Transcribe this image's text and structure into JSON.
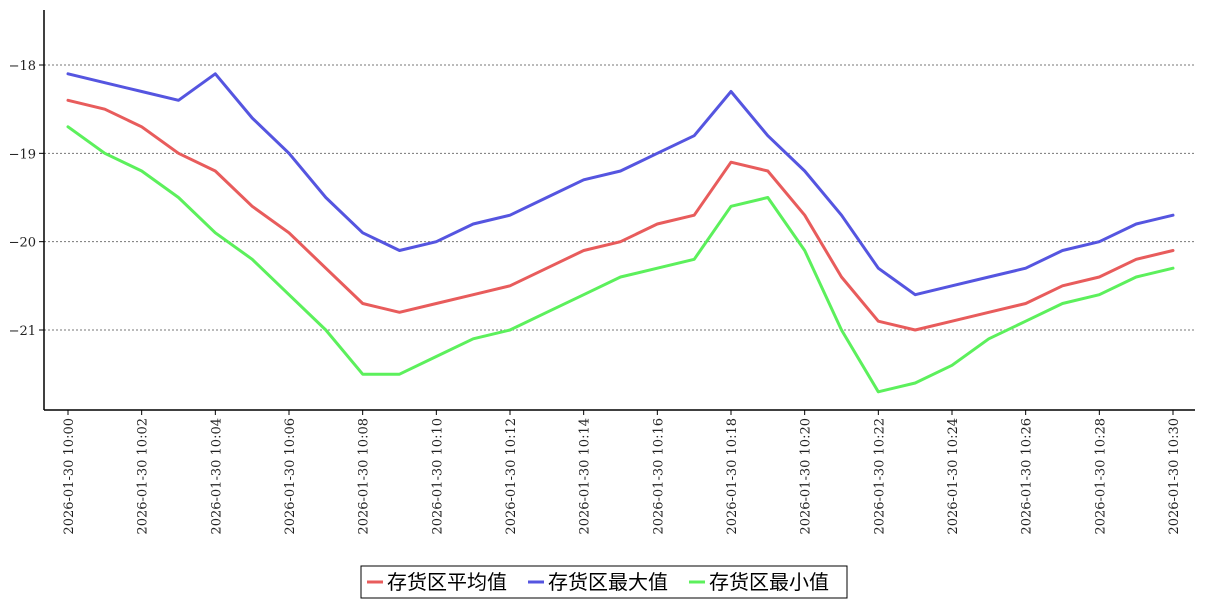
{
  "chart_data": {
    "type": "line",
    "x": [
      "2026-01-30 10:00",
      "2026-01-30 10:01",
      "2026-01-30 10:02",
      "2026-01-30 10:03",
      "2026-01-30 10:04",
      "2026-01-30 10:05",
      "2026-01-30 10:06",
      "2026-01-30 10:07",
      "2026-01-30 10:08",
      "2026-01-30 10:09",
      "2026-01-30 10:10",
      "2026-01-30 10:11",
      "2026-01-30 10:12",
      "2026-01-30 10:13",
      "2026-01-30 10:14",
      "2026-01-30 10:15",
      "2026-01-30 10:16",
      "2026-01-30 10:17",
      "2026-01-30 10:18",
      "2026-01-30 10:19",
      "2026-01-30 10:20",
      "2026-01-30 10:21",
      "2026-01-30 10:22",
      "2026-01-30 10:23",
      "2026-01-30 10:24",
      "2026-01-30 10:25",
      "2026-01-30 10:26",
      "2026-01-30 10:27",
      "2026-01-30 10:28",
      "2026-01-30 10:29",
      "2026-01-30 10:30"
    ],
    "x_tick_labels": [
      "2026-01-30 10:00",
      "2026-01-30 10:02",
      "2026-01-30 10:04",
      "2026-01-30 10:06",
      "2026-01-30 10:08",
      "2026-01-30 10:10",
      "2026-01-30 10:12",
      "2026-01-30 10:14",
      "2026-01-30 10:16",
      "2026-01-30 10:18",
      "2026-01-30 10:20",
      "2026-01-30 10:22",
      "2026-01-30 10:24",
      "2026-01-30 10:26",
      "2026-01-30 10:28",
      "2026-01-30 10:30"
    ],
    "y_ticks": [
      -18,
      -19,
      -20,
      -21
    ],
    "y_tick_labels": [
      "−18",
      "−19",
      "−20",
      "−21"
    ],
    "ylim": [
      -21.93,
      -17.4
    ],
    "grid": "horizontal dotted",
    "legend_position": "bottom-center",
    "title": "",
    "xlabel": "",
    "ylabel": "",
    "series": [
      {
        "name": "存货区平均值",
        "color": "#e85c5c",
        "values": [
          -18.4,
          -18.5,
          -18.7,
          -19.0,
          -19.2,
          -19.6,
          -19.9,
          -20.3,
          -20.7,
          -20.8,
          -20.7,
          -20.6,
          -20.5,
          -20.3,
          -20.1,
          -20.0,
          -19.8,
          -19.7,
          -19.1,
          -19.2,
          -19.7,
          -20.4,
          -20.9,
          -21.0,
          -20.9,
          -20.8,
          -20.7,
          -20.5,
          -20.4,
          -20.2,
          -20.1
        ]
      },
      {
        "name": "存货区最大值",
        "color": "#5555e0",
        "values": [
          -18.1,
          -18.2,
          -18.3,
          -18.4,
          -18.1,
          -18.6,
          -19.0,
          -19.5,
          -19.9,
          -20.1,
          -20.0,
          -19.8,
          -19.7,
          -19.5,
          -19.3,
          -19.2,
          -19.0,
          -18.8,
          -18.3,
          -18.8,
          -19.2,
          -19.7,
          -20.3,
          -20.6,
          -20.5,
          -20.4,
          -20.3,
          -20.1,
          -20.0,
          -19.8,
          -19.7
        ]
      },
      {
        "name": "存货区最小值",
        "color": "#5cf05c",
        "values": [
          -18.7,
          -19.0,
          -19.2,
          -19.5,
          -19.9,
          -20.2,
          -20.6,
          -21.0,
          -21.5,
          -21.5,
          -21.3,
          -21.1,
          -21.0,
          -20.8,
          -20.6,
          -20.4,
          -20.3,
          -20.2,
          -19.6,
          -19.5,
          -20.1,
          -21.0,
          -21.7,
          -21.6,
          -21.4,
          -21.1,
          -20.9,
          -20.7,
          -20.6,
          -20.4,
          -20.3
        ]
      }
    ]
  }
}
